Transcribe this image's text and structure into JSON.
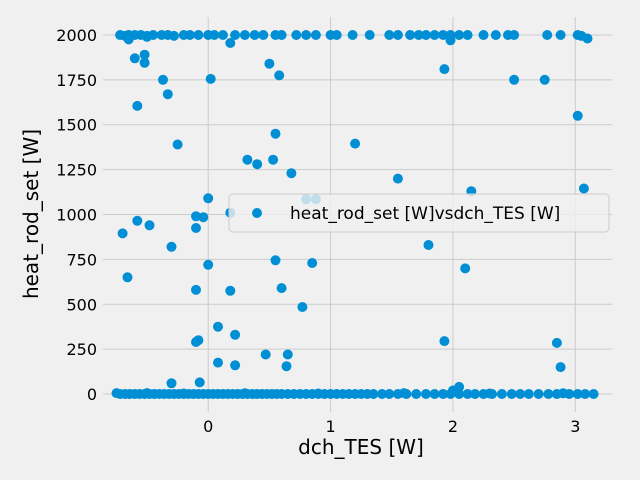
{
  "chart_data": {
    "type": "scatter",
    "xlabel": "dch_TES [W]",
    "ylabel": "heat_rod_set [W]",
    "xlim": [
      -0.86,
      3.3
    ],
    "ylim": [
      -100,
      2100
    ],
    "x_ticks": [
      0,
      1,
      2,
      3
    ],
    "y_ticks": [
      0,
      250,
      500,
      750,
      1000,
      1250,
      1500,
      1750,
      2000
    ],
    "grid": true,
    "legend_position": "center-right",
    "colors": {
      "marker": "#008fd5",
      "grid": "#cbcbcb",
      "background": "#f0f0f0"
    },
    "series": [
      {
        "name": "heat_rod_set [W]vsdch_TES [W]",
        "points": [
          [
            -0.72,
            2000
          ],
          [
            -0.68,
            1995
          ],
          [
            -0.65,
            2000
          ],
          [
            -0.6,
            2000
          ],
          [
            -0.55,
            2000
          ],
          [
            -0.5,
            1995
          ],
          [
            -0.45,
            2000
          ],
          [
            -0.38,
            2000
          ],
          [
            -0.33,
            2000
          ],
          [
            -0.28,
            1995
          ],
          [
            -0.2,
            2000
          ],
          [
            -0.15,
            2000
          ],
          [
            -0.08,
            2000
          ],
          [
            0.0,
            2000
          ],
          [
            0.05,
            2000
          ],
          [
            0.12,
            2000
          ],
          [
            0.22,
            2000
          ],
          [
            0.3,
            2000
          ],
          [
            0.38,
            2000
          ],
          [
            0.45,
            2000
          ],
          [
            0.55,
            2000
          ],
          [
            0.6,
            2000
          ],
          [
            0.72,
            2000
          ],
          [
            0.8,
            2000
          ],
          [
            0.88,
            2000
          ],
          [
            1.0,
            2000
          ],
          [
            1.05,
            2000
          ],
          [
            1.18,
            2000
          ],
          [
            1.32,
            2000
          ],
          [
            1.48,
            2000
          ],
          [
            1.55,
            2000
          ],
          [
            1.65,
            2000
          ],
          [
            1.72,
            2000
          ],
          [
            1.78,
            2000
          ],
          [
            1.85,
            2000
          ],
          [
            1.92,
            2000
          ],
          [
            1.98,
            2000
          ],
          [
            2.05,
            2000
          ],
          [
            2.12,
            2000
          ],
          [
            2.25,
            2000
          ],
          [
            2.35,
            2000
          ],
          [
            2.45,
            2000
          ],
          [
            2.5,
            2000
          ],
          [
            2.77,
            2000
          ],
          [
            2.88,
            2000
          ],
          [
            3.02,
            2000
          ],
          [
            3.05,
            1995
          ],
          [
            -0.65,
            1975
          ],
          [
            -0.5,
            1990
          ],
          [
            0.18,
            1955
          ],
          [
            1.98,
            1970
          ],
          [
            3.1,
            1980
          ],
          [
            -0.6,
            1870
          ],
          [
            -0.52,
            1845
          ],
          [
            -0.52,
            1890
          ],
          [
            -0.37,
            1750
          ],
          [
            -0.33,
            1670
          ],
          [
            -0.58,
            1605
          ],
          [
            0.02,
            1755
          ],
          [
            0.5,
            1840
          ],
          [
            0.58,
            1775
          ],
          [
            1.93,
            1810
          ],
          [
            2.5,
            1750
          ],
          [
            2.75,
            1750
          ],
          [
            -0.25,
            1390
          ],
          [
            0.55,
            1450
          ],
          [
            1.2,
            1395
          ],
          [
            3.02,
            1550
          ],
          [
            0.32,
            1305
          ],
          [
            0.4,
            1280
          ],
          [
            0.53,
            1305
          ],
          [
            0.68,
            1230
          ],
          [
            1.55,
            1200
          ],
          [
            0.0,
            1090
          ],
          [
            0.8,
            1085
          ],
          [
            0.88,
            1085
          ],
          [
            2.15,
            1130
          ],
          [
            3.07,
            1145
          ],
          [
            -0.1,
            990
          ],
          [
            -0.04,
            985
          ],
          [
            0.18,
            1010
          ],
          [
            -0.58,
            965
          ],
          [
            -0.48,
            940
          ],
          [
            -0.1,
            925
          ],
          [
            -0.7,
            895
          ],
          [
            -0.3,
            820
          ],
          [
            1.8,
            830
          ],
          [
            0.0,
            720
          ],
          [
            0.55,
            745
          ],
          [
            0.85,
            730
          ],
          [
            2.1,
            700
          ],
          [
            -0.66,
            650
          ],
          [
            -0.1,
            580
          ],
          [
            0.18,
            575
          ],
          [
            0.6,
            590
          ],
          [
            0.77,
            485
          ],
          [
            0.08,
            375
          ],
          [
            0.22,
            330
          ],
          [
            -0.1,
            290
          ],
          [
            -0.08,
            300
          ],
          [
            1.93,
            295
          ],
          [
            2.85,
            285
          ],
          [
            0.47,
            220
          ],
          [
            0.65,
            220
          ],
          [
            0.08,
            175
          ],
          [
            0.22,
            160
          ],
          [
            0.64,
            155
          ],
          [
            2.88,
            150
          ],
          [
            -0.3,
            60
          ],
          [
            -0.07,
            65
          ],
          [
            2.05,
            40
          ],
          [
            2.0,
            20
          ],
          [
            -0.75,
            5
          ],
          [
            -0.72,
            0
          ],
          [
            -0.68,
            0
          ],
          [
            -0.64,
            0
          ],
          [
            -0.6,
            0
          ],
          [
            -0.56,
            0
          ],
          [
            -0.52,
            0
          ],
          [
            -0.48,
            0
          ],
          [
            -0.44,
            0
          ],
          [
            -0.4,
            0
          ],
          [
            -0.36,
            0
          ],
          [
            -0.32,
            0
          ],
          [
            -0.28,
            0
          ],
          [
            -0.24,
            0
          ],
          [
            -0.2,
            0
          ],
          [
            -0.16,
            0
          ],
          [
            -0.12,
            0
          ],
          [
            -0.08,
            0
          ],
          [
            -0.04,
            0
          ],
          [
            0.0,
            0
          ],
          [
            0.04,
            0
          ],
          [
            0.08,
            0
          ],
          [
            0.12,
            0
          ],
          [
            0.16,
            0
          ],
          [
            0.2,
            0
          ],
          [
            0.24,
            0
          ],
          [
            0.28,
            0
          ],
          [
            0.32,
            0
          ],
          [
            0.36,
            0
          ],
          [
            0.4,
            0
          ],
          [
            0.44,
            0
          ],
          [
            0.48,
            0
          ],
          [
            0.52,
            0
          ],
          [
            0.56,
            0
          ],
          [
            0.6,
            0
          ],
          [
            0.65,
            0
          ],
          [
            0.7,
            0
          ],
          [
            0.75,
            0
          ],
          [
            0.8,
            0
          ],
          [
            0.85,
            0
          ],
          [
            0.9,
            0
          ],
          [
            0.95,
            0
          ],
          [
            1.0,
            0
          ],
          [
            1.05,
            0
          ],
          [
            1.1,
            0
          ],
          [
            1.15,
            0
          ],
          [
            1.2,
            0
          ],
          [
            1.25,
            0
          ],
          [
            1.3,
            0
          ],
          [
            1.35,
            0
          ],
          [
            1.42,
            0
          ],
          [
            1.48,
            0
          ],
          [
            1.55,
            0
          ],
          [
            1.62,
            0
          ],
          [
            1.7,
            0
          ],
          [
            1.78,
            0
          ],
          [
            1.85,
            0
          ],
          [
            1.92,
            0
          ],
          [
            1.98,
            0
          ],
          [
            2.05,
            0
          ],
          [
            2.12,
            0
          ],
          [
            2.18,
            0
          ],
          [
            2.25,
            0
          ],
          [
            2.32,
            0
          ],
          [
            2.4,
            0
          ],
          [
            2.48,
            0
          ],
          [
            2.55,
            0
          ],
          [
            2.62,
            0
          ],
          [
            2.7,
            0
          ],
          [
            2.78,
            0
          ],
          [
            2.85,
            0
          ],
          [
            2.95,
            0
          ],
          [
            3.02,
            0
          ],
          [
            3.08,
            0
          ],
          [
            3.15,
            0
          ],
          [
            -0.5,
            5
          ],
          [
            -0.2,
            3
          ],
          [
            0.3,
            4
          ],
          [
            0.9,
            3
          ],
          [
            1.6,
            5
          ],
          [
            2.3,
            3
          ],
          [
            2.9,
            4
          ]
        ]
      }
    ]
  }
}
